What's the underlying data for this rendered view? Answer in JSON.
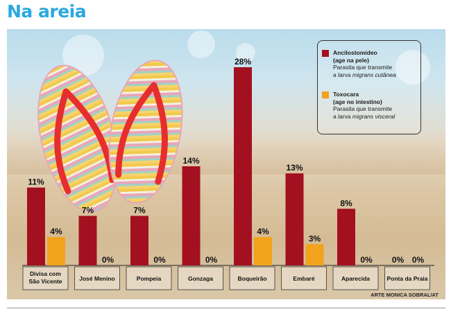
{
  "header": {
    "title": "Na areia"
  },
  "colors": {
    "title": "#2aa8df",
    "ancilostomideo": "#a3101f",
    "toxocara": "#f2a21b"
  },
  "legend": {
    "items": [
      {
        "name": "Ancilostomídeo",
        "sub": "(age na pele)",
        "desc_prefix": "Parasita que transmite",
        "desc_line2": "a larva ",
        "desc_italic": "migrans cutânea"
      },
      {
        "name": "Toxocara",
        "sub": "(age no intestino)",
        "desc_prefix": "Parasita que transmite",
        "desc_line2": "a larva ",
        "desc_italic": "migrans visceral"
      }
    ]
  },
  "credit": "ARTE MONICA SOBRAL/AT",
  "chart_data": {
    "type": "bar",
    "categories": [
      "Divisa com São Vicente",
      "José Menino",
      "Pompeia",
      "Gonzaga",
      "Boqueirão",
      "Embaré",
      "Aparecida",
      "Ponta da Praia"
    ],
    "category_lines": [
      [
        "Divisa com",
        "São Vicente"
      ],
      [
        "José Menino"
      ],
      [
        "Pompeia"
      ],
      [
        "Gonzaga"
      ],
      [
        "Boqueirão"
      ],
      [
        "Embaré"
      ],
      [
        "Aparecida"
      ],
      [
        "Ponta da Praia"
      ]
    ],
    "series": [
      {
        "name": "Ancilostomídeo",
        "values": [
          11,
          7,
          7,
          14,
          28,
          13,
          8,
          0
        ],
        "color": "#a3101f"
      },
      {
        "name": "Toxocara",
        "values": [
          4,
          0,
          0,
          0,
          4,
          3,
          0,
          0
        ],
        "color": "#f2a21b"
      }
    ],
    "unit": "%",
    "ylim": [
      0,
      28
    ],
    "grid": false,
    "legend_position": "top-right",
    "title": "",
    "xlabel": "",
    "ylabel": ""
  }
}
